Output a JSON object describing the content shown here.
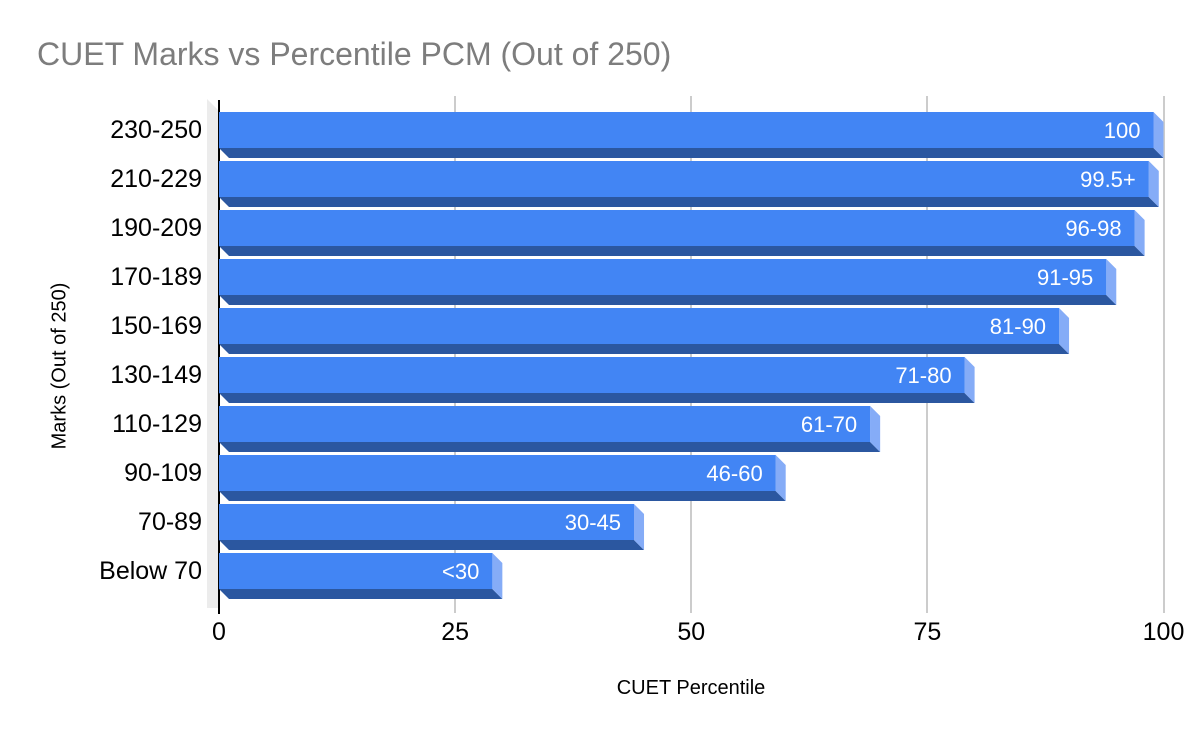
{
  "title": "CUET Marks vs Percentile PCM (Out of 250)",
  "chart_data": {
    "type": "bar",
    "orientation": "horizontal",
    "title": "CUET Marks vs Percentile PCM (Out of 250)",
    "categories": [
      "230-250",
      "210-229",
      "190-209",
      "170-189",
      "150-169",
      "130-149",
      "110-129",
      "90-109",
      "70-89",
      "Below 70"
    ],
    "values": [
      100,
      99.5,
      98,
      95,
      90,
      80,
      70,
      60,
      45,
      30
    ],
    "bar_labels": [
      "100",
      "99.5+",
      "96-98",
      "91-95",
      "81-90",
      "71-80",
      "61-70",
      "46-60",
      "30-45",
      "<30"
    ],
    "xlabel": "CUET Percentile",
    "ylabel": "Marks (Out of 250)",
    "xlim": [
      0,
      100
    ],
    "x_ticks": [
      "0",
      "25",
      "50",
      "75",
      "100"
    ],
    "grid": true,
    "legend": "none",
    "style": {
      "bar_color": "#4285f4",
      "bar_side_color": "#85acf7",
      "bar_bottom_color": "#2b57a0",
      "wall_color": "#ececec",
      "gridline_color": "#cccccc",
      "axis_line_color": "#000000",
      "title_color": "#7d7d7d",
      "label_color": "#000000",
      "value_label_color": "#ffffff",
      "background_color": "#ffffff"
    }
  }
}
